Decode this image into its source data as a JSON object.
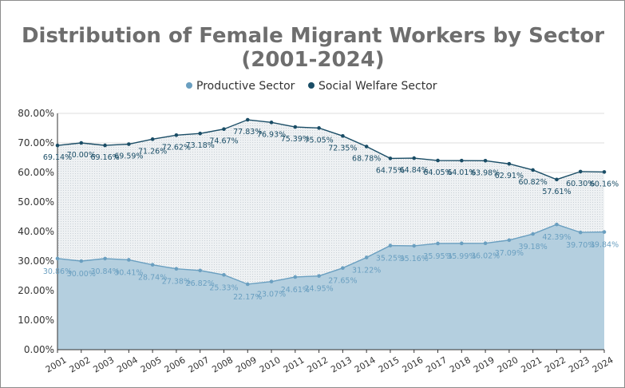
{
  "chart_data": {
    "type": "area",
    "title_lines": [
      "Distribution of Female Migrant Workers by Sector",
      "(2001-2024)"
    ],
    "xlabel": "",
    "ylabel": "",
    "categories": [
      "2001",
      "2002",
      "2003",
      "2004",
      "2005",
      "2006",
      "2007",
      "2008",
      "2009",
      "2010",
      "2011",
      "2012",
      "2013",
      "2014",
      "2015",
      "2016",
      "2017",
      "2018",
      "2019",
      "2020",
      "2021",
      "2022",
      "2023",
      "2024"
    ],
    "ylim": [
      0,
      80
    ],
    "yticks": [
      0,
      10,
      20,
      30,
      40,
      50,
      60,
      70,
      80
    ],
    "ytick_labels": [
      "0.00%",
      "10.00%",
      "20.00%",
      "30.00%",
      "40.00%",
      "50.00%",
      "60.00%",
      "70.00%",
      "80.00%"
    ],
    "legend_position": "top-center",
    "stacked": false,
    "series": [
      {
        "name": "Productive Sector",
        "color": "#6a9fc0",
        "fill": "#b4cfdf",
        "label_color": "#6a9fc0",
        "values": [
          30.86,
          30.0,
          30.84,
          30.41,
          28.74,
          27.38,
          26.82,
          25.33,
          22.17,
          23.07,
          24.61,
          24.95,
          27.65,
          31.22,
          35.25,
          35.16,
          35.95,
          35.99,
          36.02,
          37.09,
          39.18,
          42.39,
          39.7,
          39.84
        ],
        "value_labels": [
          "30.86%",
          "30.00%",
          "30.84%",
          "30.41%",
          "28.74%",
          "27.38%",
          "26.82%",
          "25.33%",
          "22.17%",
          "23.07%",
          "24.61%",
          "24.95%",
          "27.65%",
          "31.22%",
          "35.25%",
          "35.16%",
          "35.95%",
          "35.99%",
          "36.02%",
          "37.09%",
          "39.18%",
          "42.39%",
          "39.70%",
          "39.84%"
        ]
      },
      {
        "name": "Social Welfare Sector",
        "color": "#1a4d66",
        "fill": "#e9eef1",
        "label_color": "#1a4d66",
        "values": [
          69.14,
          70.0,
          69.16,
          69.59,
          71.26,
          72.62,
          73.18,
          74.67,
          77.83,
          76.93,
          75.39,
          75.05,
          72.35,
          68.78,
          64.75,
          64.84,
          64.05,
          64.01,
          63.98,
          62.91,
          60.82,
          57.61,
          60.3,
          60.16
        ],
        "value_labels": [
          "69.14%",
          "70.00%",
          "69.16%",
          "69.59%",
          "71.26%",
          "72.62%",
          "73.18%",
          "74.67%",
          "77.83%",
          "76.93%",
          "75.39%",
          "75.05%",
          "72.35%",
          "68.78%",
          "64.75%",
          "64.84%",
          "64.05%",
          "64.01%",
          "63.98%",
          "62.91%",
          "60.82%",
          "57.61%",
          "60.30%",
          "60.16%"
        ]
      }
    ]
  }
}
